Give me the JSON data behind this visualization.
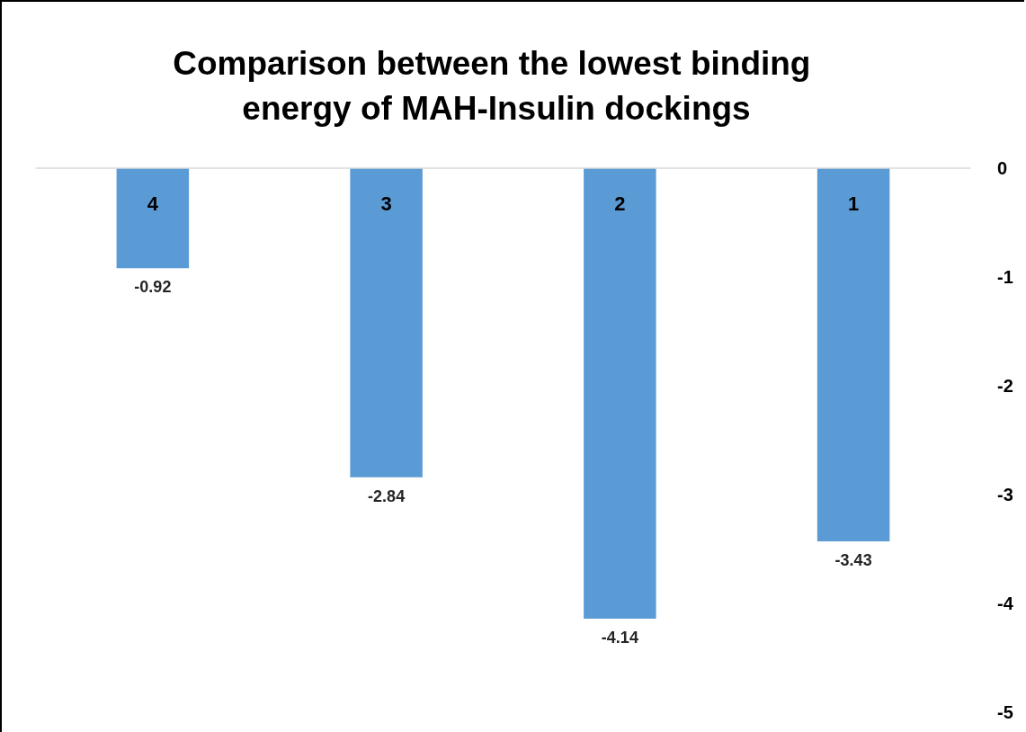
{
  "chart_data": {
    "type": "bar",
    "title": "Comparison between the lowest binding energy of MAH-Insulin dockings",
    "categories": [
      "4",
      "3",
      "2",
      "1"
    ],
    "values": [
      -0.92,
      -2.84,
      -4.14,
      -3.43
    ],
    "color": "#5b9bd5",
    "ylim": [
      -5,
      0
    ],
    "yticks": [
      0,
      -1,
      -2,
      -3,
      -4,
      -5
    ],
    "grid": false,
    "data_labels": true
  }
}
